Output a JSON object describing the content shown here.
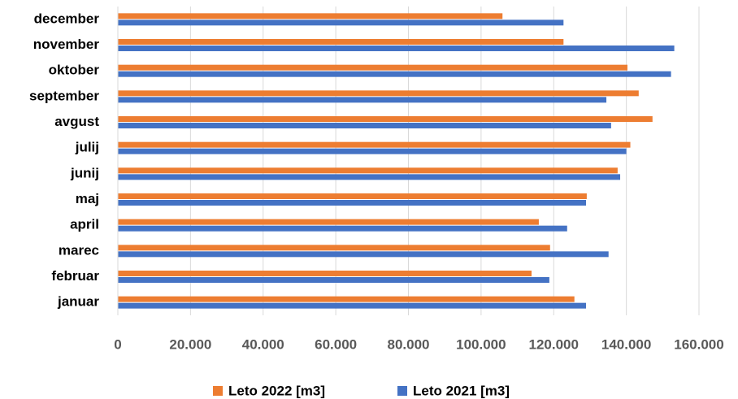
{
  "chart_data": {
    "type": "bar",
    "orientation": "horizontal",
    "categories": [
      "januar",
      "februar",
      "marec",
      "april",
      "maj",
      "junij",
      "julij",
      "avgust",
      "september",
      "oktober",
      "november",
      "december"
    ],
    "series": [
      {
        "name": "Leto 2022 [m3]",
        "color": "#ed7d31",
        "values": [
          125700,
          113900,
          119000,
          115900,
          129100,
          137600,
          141100,
          147200,
          143400,
          140300,
          122700,
          105900
        ]
      },
      {
        "name": "Leto 2021 [m3]",
        "color": "#4472c4",
        "values": [
          128900,
          118800,
          135100,
          123700,
          128900,
          138300,
          140000,
          135800,
          134500,
          152300,
          153200,
          122700
        ]
      }
    ],
    "xlim": [
      0,
      160000
    ],
    "xticks": [
      0,
      {
        "value": 20000,
        "label": "20.000"
      },
      {
        "value": 40000,
        "label": "40.000"
      },
      {
        "value": 60000,
        "label": "60.000"
      },
      {
        "value": 80000,
        "label": "80.000"
      },
      {
        "value": 100000,
        "label": "100.000"
      },
      {
        "value": 120000,
        "label": "120.000"
      },
      {
        "value": 140000,
        "label": "140.000"
      },
      {
        "value": 160000,
        "label": "160.000"
      }
    ],
    "grid": true,
    "legend": "bottom"
  }
}
